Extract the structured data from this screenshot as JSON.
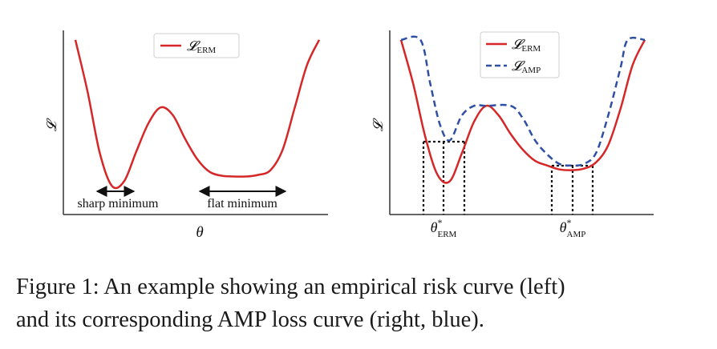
{
  "chart_data": [
    {
      "type": "line",
      "panel": "left",
      "xlabel": "θ",
      "ylabel": "𝓛",
      "legend": {
        "placement": "top-center",
        "entries": [
          {
            "main": "𝓛",
            "sub": "ERM",
            "color": "#d62728",
            "style": "solid"
          }
        ]
      },
      "annotations": [
        {
          "text": "sharp minimum",
          "arrow_x": [
            0.16,
            0.29
          ]
        },
        {
          "text": "flat minimum",
          "arrow_x": [
            0.52,
            0.88
          ]
        }
      ],
      "series": [
        {
          "name": "𝓛_ERM",
          "color": "#d62728",
          "style": "solid",
          "x": [
            0.0,
            0.05,
            0.1,
            0.15,
            0.2,
            0.25,
            0.3,
            0.35,
            0.4,
            0.45,
            0.5,
            0.55,
            0.6,
            0.65,
            0.7,
            0.75,
            0.8,
            0.85,
            0.9,
            0.95,
            1.0
          ],
          "y": [
            1.0,
            0.67,
            0.28,
            0.07,
            0.1,
            0.29,
            0.47,
            0.57,
            0.52,
            0.37,
            0.24,
            0.16,
            0.135,
            0.13,
            0.13,
            0.14,
            0.17,
            0.3,
            0.57,
            0.84,
            1.0
          ]
        }
      ],
      "xlim": [
        0,
        1
      ],
      "ylim": [
        0,
        1.05
      ]
    },
    {
      "type": "line",
      "panel": "right",
      "ylabel": "𝓛",
      "legend": {
        "placement": "top-right",
        "entries": [
          {
            "main": "𝓛",
            "sub": "ERM",
            "color": "#d62728",
            "style": "solid"
          },
          {
            "main": "𝓛",
            "sub": "AMP",
            "color": "#2e4fa3",
            "style": "dashed"
          }
        ]
      },
      "tick_labels": [
        {
          "main": "θ",
          "sup": "*",
          "sub": "ERM",
          "x": 0.2
        },
        {
          "main": "θ",
          "sup": "*",
          "sub": "AMP",
          "x": 0.71
        }
      ],
      "series": [
        {
          "name": "𝓛_ERM",
          "color": "#d62728",
          "style": "solid",
          "x": [
            0.0,
            0.05,
            0.1,
            0.15,
            0.2,
            0.25,
            0.3,
            0.35,
            0.4,
            0.45,
            0.5,
            0.55,
            0.6,
            0.65,
            0.7,
            0.75,
            0.8,
            0.85,
            0.9,
            0.95,
            1.0
          ],
          "y": [
            1.0,
            0.72,
            0.38,
            0.14,
            0.1,
            0.28,
            0.48,
            0.58,
            0.52,
            0.4,
            0.3,
            0.23,
            0.2,
            0.175,
            0.17,
            0.18,
            0.22,
            0.33,
            0.56,
            0.84,
            1.0
          ]
        },
        {
          "name": "𝓛_AMP",
          "color": "#2e4fa3",
          "style": "dashed",
          "x": [
            0.0,
            0.08,
            0.12,
            0.16,
            0.2,
            0.25,
            0.3,
            0.35,
            0.45,
            0.5,
            0.55,
            0.6,
            0.65,
            0.7,
            0.75,
            0.8,
            0.85,
            0.9,
            0.93,
            1.0
          ],
          "y": [
            1.0,
            1.0,
            0.72,
            0.46,
            0.36,
            0.52,
            0.58,
            0.58,
            0.58,
            0.5,
            0.36,
            0.27,
            0.21,
            0.2,
            0.21,
            0.28,
            0.52,
            0.82,
            1.0,
            1.0
          ]
        }
      ],
      "reference_lines": [
        {
          "at": "θ*_ERM",
          "x_range": [
            0.14,
            0.26
          ]
        },
        {
          "at": "θ*_AMP",
          "x_range": [
            0.63,
            0.79
          ]
        }
      ],
      "xlim": [
        0,
        1
      ],
      "ylim": [
        0,
        1.05
      ]
    }
  ],
  "caption": {
    "line1": "Figure 1: An example showing an empirical risk curve (left)",
    "line2": "and its corresponding AMP loss curve (right, blue)."
  }
}
